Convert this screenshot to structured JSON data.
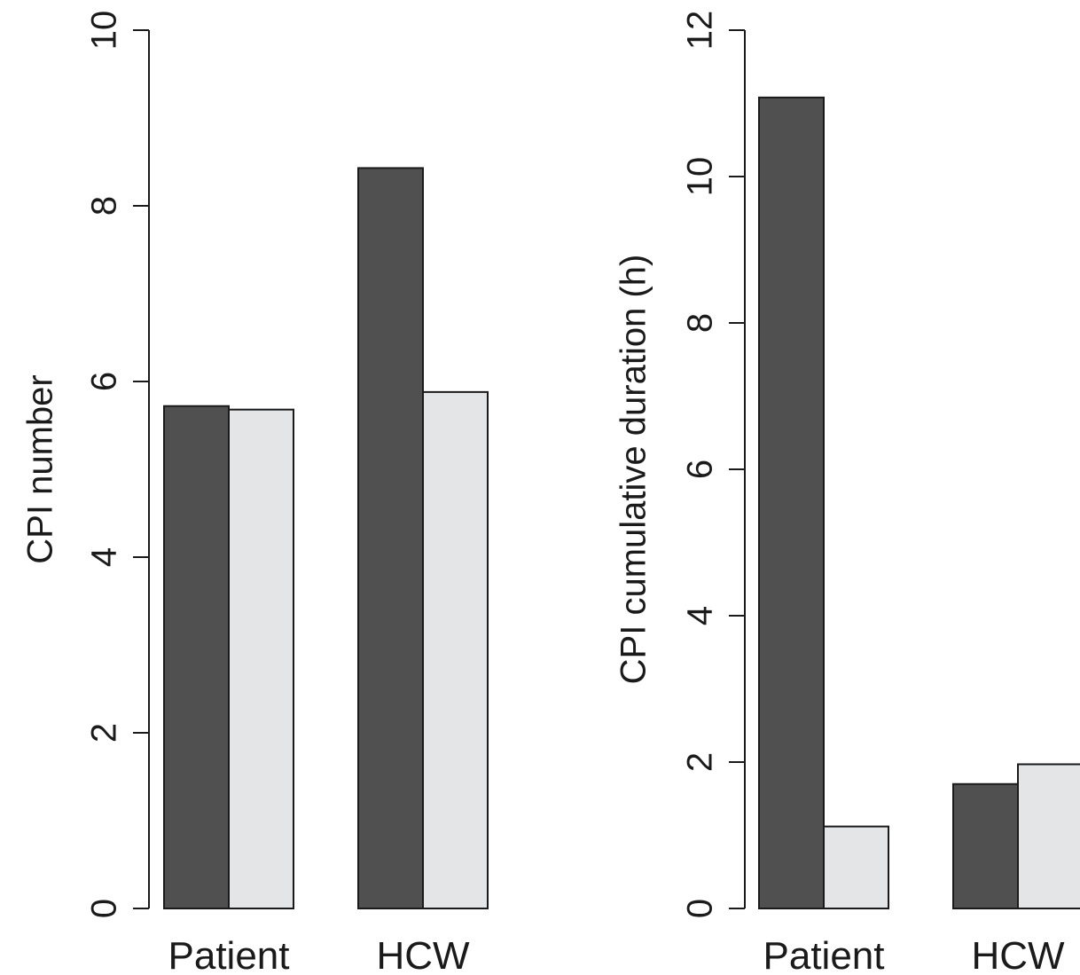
{
  "chart_data": [
    {
      "type": "bar",
      "ylabel": "CPI number",
      "categories": [
        "Patient",
        "HCW"
      ],
      "series": [
        {
          "values": [
            5.72,
            8.43
          ],
          "color": "#505050"
        },
        {
          "values": [
            5.68,
            5.88
          ],
          "color": "#e4e5e7"
        }
      ],
      "ylim": [
        0,
        10
      ],
      "yticks": [
        0,
        2,
        4,
        6,
        8,
        10
      ],
      "grid": false
    },
    {
      "type": "bar",
      "ylabel": "CPI cumulative duration (h)",
      "categories": [
        "Patient",
        "HCW"
      ],
      "series": [
        {
          "values": [
            11.08,
            1.7
          ],
          "color": "#505050"
        },
        {
          "values": [
            1.12,
            1.97
          ],
          "color": "#e4e5e7"
        }
      ],
      "ylim": [
        0,
        12
      ],
      "yticks": [
        0,
        2,
        4,
        6,
        8,
        10,
        12
      ],
      "grid": false
    }
  ]
}
